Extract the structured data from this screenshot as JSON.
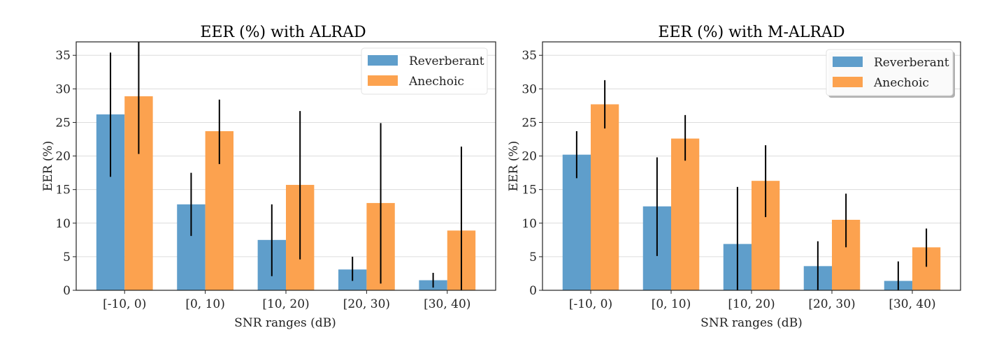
{
  "colors": {
    "reverberant": "#5f9ecb",
    "anechoic": "#fca24f",
    "error_bar": "#000000",
    "grid": "#dcdcdc",
    "axis": "#222222"
  },
  "chart_data": [
    {
      "type": "bar",
      "title": "EER (%) with ALRAD",
      "xlabel": "SNR ranges (dB)",
      "ylabel": "EER (%)",
      "ylim": [
        0,
        37
      ],
      "yticks": [
        0,
        5,
        10,
        15,
        20,
        25,
        30,
        35
      ],
      "grid": "horizontal",
      "legend_position": "top-right",
      "categories": [
        "[-10, 0)",
        "[0, 10)",
        "[10, 20)",
        "[20, 30)",
        "[30, 40)"
      ],
      "series": [
        {
          "name": "Reverberant",
          "values": [
            26.2,
            12.8,
            7.5,
            3.1,
            1.5
          ],
          "error_low": [
            16.9,
            8.1,
            2.1,
            1.4,
            0.4
          ],
          "error_high": [
            35.4,
            17.5,
            12.8,
            5.0,
            2.6
          ]
        },
        {
          "name": "Anechoic",
          "values": [
            28.9,
            23.7,
            15.7,
            13.0,
            8.9
          ],
          "error_low": [
            20.3,
            18.8,
            4.6,
            1.0,
            0.0
          ],
          "error_high": [
            37.5,
            28.4,
            26.7,
            24.9,
            21.4
          ]
        }
      ]
    },
    {
      "type": "bar",
      "title": "EER (%) with M-ALRAD",
      "xlabel": "SNR ranges (dB)",
      "ylabel": "EER (%)",
      "ylim": [
        0,
        37
      ],
      "yticks": [
        0,
        5,
        10,
        15,
        20,
        25,
        30,
        35
      ],
      "grid": "horizontal",
      "legend_position": "top-right",
      "categories": [
        "[-10, 0)",
        "[0, 10)",
        "[10, 20)",
        "[20, 30)",
        "[30, 40)"
      ],
      "series": [
        {
          "name": "Reverberant",
          "values": [
            20.2,
            12.5,
            6.9,
            3.6,
            1.4
          ],
          "error_low": [
            16.7,
            5.1,
            0.0,
            0.0,
            0.0
          ],
          "error_high": [
            23.7,
            19.8,
            15.4,
            7.3,
            4.3
          ]
        },
        {
          "name": "Anechoic",
          "values": [
            27.7,
            22.6,
            16.3,
            10.5,
            6.4
          ],
          "error_low": [
            24.1,
            19.3,
            10.9,
            6.4,
            3.5
          ],
          "error_high": [
            31.3,
            26.1,
            21.6,
            14.4,
            9.2
          ]
        }
      ]
    }
  ]
}
